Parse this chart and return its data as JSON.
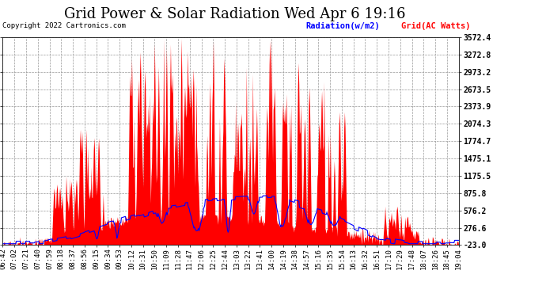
{
  "title": "Grid Power & Solar Radiation Wed Apr 6 19:16",
  "copyright": "Copyright 2022 Cartronics.com",
  "legend_radiation": "Radiation(w/m2)",
  "legend_grid": "Grid(AC Watts)",
  "yticks": [
    3572.4,
    3272.8,
    2973.2,
    2673.5,
    2373.9,
    2074.3,
    1774.7,
    1475.1,
    1175.5,
    875.8,
    576.2,
    276.6,
    -23.0
  ],
  "ymin": -23.0,
  "ymax": 3572.4,
  "background_color": "#ffffff",
  "plot_background": "#ffffff",
  "grid_color": "#999999",
  "radiation_color": "#0000ff",
  "grid_ac_color": "#ff0000",
  "title_fontsize": 13,
  "tick_fontsize": 6.5,
  "xtick_labels": [
    "06:42",
    "07:02",
    "07:21",
    "07:40",
    "07:59",
    "08:18",
    "08:37",
    "08:56",
    "09:15",
    "09:34",
    "09:53",
    "10:12",
    "10:31",
    "10:50",
    "11:09",
    "11:28",
    "11:47",
    "12:06",
    "12:25",
    "12:44",
    "13:03",
    "13:22",
    "13:41",
    "14:00",
    "14:19",
    "14:38",
    "14:57",
    "15:16",
    "15:35",
    "15:54",
    "16:13",
    "16:32",
    "16:51",
    "17:10",
    "17:29",
    "17:48",
    "18:07",
    "18:26",
    "18:45",
    "19:04"
  ]
}
